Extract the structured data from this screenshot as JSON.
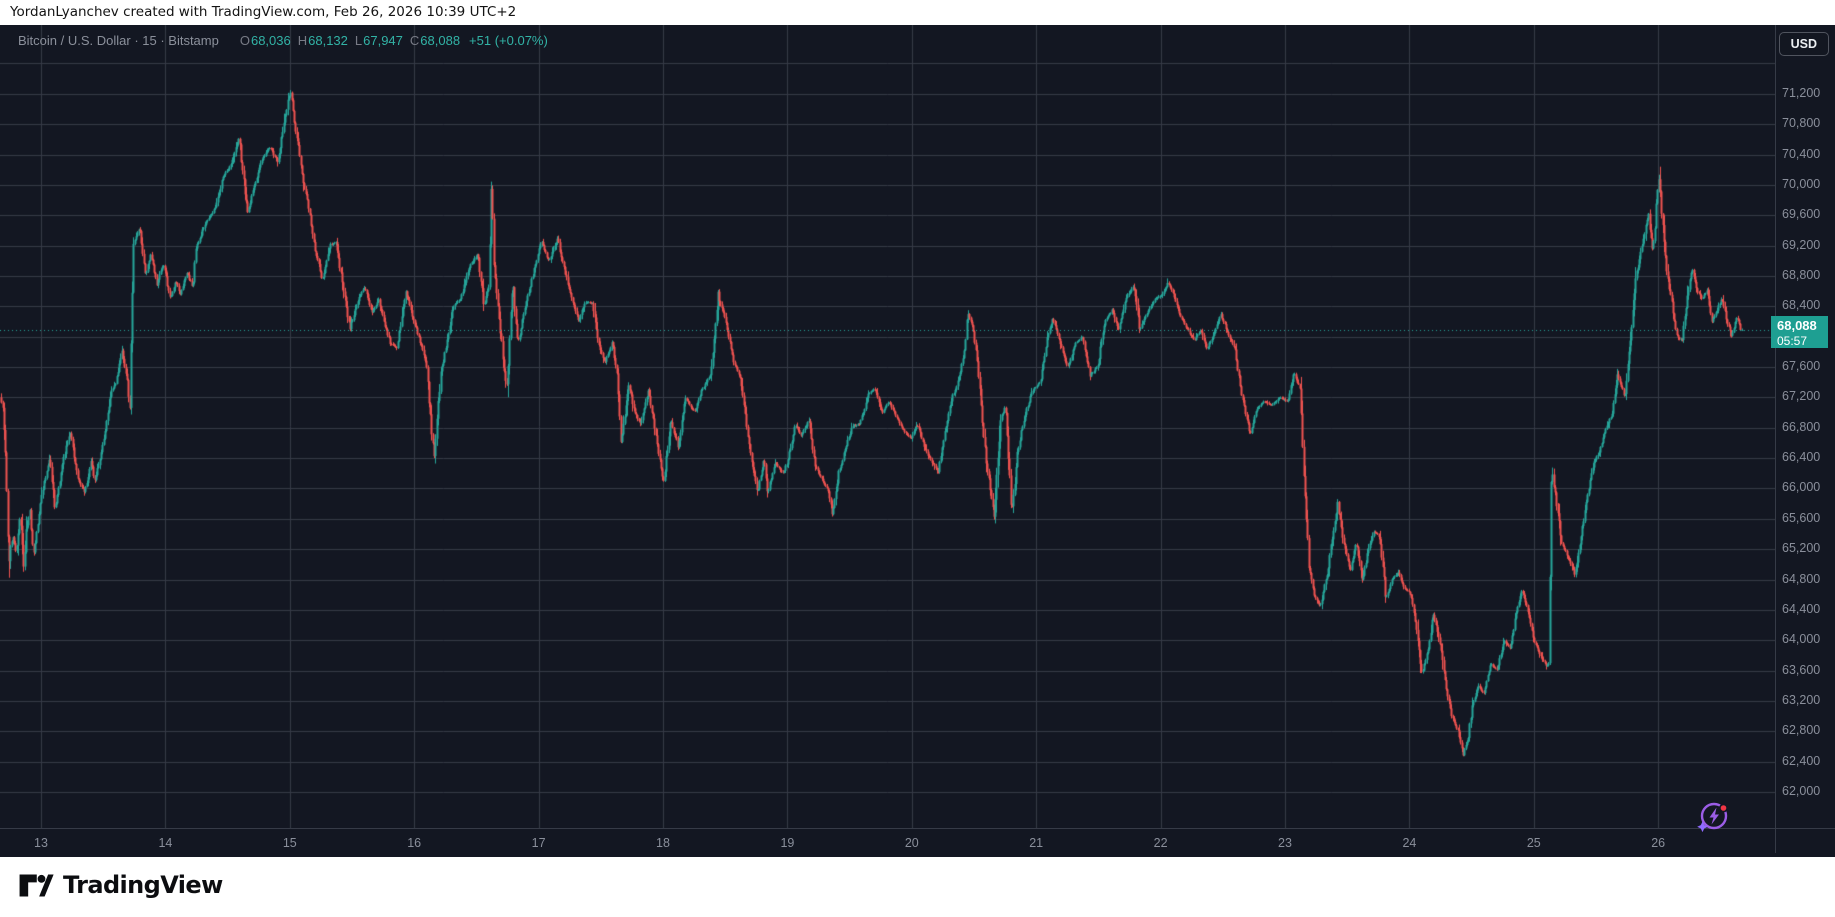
{
  "attribution": {
    "text": "YordanLyanchev created with TradingView.com, Feb 26, 2026 10:39 UTC+2"
  },
  "header": {
    "title": "Bitcoin / U.S. Dollar · 15 · Bitstamp",
    "ohlc": {
      "o_label": "O",
      "o_value": "68,036",
      "h_label": "H",
      "h_value": "68,132",
      "l_label": "L",
      "l_value": "67,947",
      "c_label": "C",
      "c_value": "68,088",
      "change": "+51 (+0.07%)"
    }
  },
  "price_scale": {
    "currency": "USD",
    "last_price": "68,088",
    "countdown": "05:57",
    "tick_labels": [
      "71,200",
      "70,800",
      "70,400",
      "70,000",
      "69,600",
      "69,200",
      "68,800",
      "68,400",
      "67,600",
      "67,200",
      "66,800",
      "66,400",
      "66,000",
      "65,600",
      "65,200",
      "64,800",
      "64,400",
      "64,000",
      "63,600",
      "63,200",
      "62,800",
      "62,400",
      "62,000"
    ]
  },
  "time_scale": {
    "day_labels": [
      "13",
      "14",
      "15",
      "16",
      "17",
      "18",
      "19",
      "20",
      "21",
      "22",
      "23",
      "24",
      "25",
      "26"
    ]
  },
  "footer": {
    "logo_text": "TradingView"
  },
  "colors": {
    "up": "#26a69a",
    "down": "#ef5350",
    "background": "#131722",
    "grid": "#363b47",
    "axis_text": "#8a8f9b",
    "legend_text": "#8b909b",
    "legend_value": "#32b3a6",
    "price_tag_bg": "#1e9f92",
    "price_tag_text": "#ffffff",
    "dotted_line": "#26a69a",
    "icon_purple": "#9b5de5",
    "icon_red": "#f23645"
  },
  "chart_data": {
    "type": "candlestick",
    "title": "Bitcoin / U.S. Dollar",
    "exchange": "Bitstamp",
    "interval_minutes": 15,
    "current_bar": {
      "open": 68036,
      "high": 68132,
      "low": 67947,
      "close": 68088,
      "change": 51,
      "change_pct": 0.07
    },
    "last_price": 68088,
    "x_axis": {
      "label": "day of February 2026",
      "days": [
        13,
        14,
        15,
        16,
        17,
        18,
        19,
        20,
        21,
        22,
        23,
        24,
        25,
        26
      ]
    },
    "y_axis": {
      "min_gridline": 62000,
      "max_gridline": 71600,
      "step": 400,
      "visible_low": 62500,
      "visible_high": 71250
    },
    "price_path_anchors": [
      [
        12.67,
        67200
      ],
      [
        12.69,
        67100
      ],
      [
        12.71,
        66500
      ],
      [
        12.74,
        65050
      ],
      [
        12.77,
        65400
      ],
      [
        12.8,
        65150
      ],
      [
        12.83,
        65650
      ],
      [
        12.86,
        64950
      ],
      [
        12.88,
        65450
      ],
      [
        12.91,
        65700
      ],
      [
        12.94,
        65100
      ],
      [
        12.95,
        65250
      ],
      [
        13.0,
        65900
      ],
      [
        13.07,
        66400
      ],
      [
        13.11,
        65750
      ],
      [
        13.18,
        66400
      ],
      [
        13.23,
        66750
      ],
      [
        13.3,
        66100
      ],
      [
        13.35,
        65950
      ],
      [
        13.4,
        66350
      ],
      [
        13.43,
        66100
      ],
      [
        13.48,
        66450
      ],
      [
        13.56,
        67250
      ],
      [
        13.6,
        67400
      ],
      [
        13.65,
        67800
      ],
      [
        13.69,
        67450
      ],
      [
        13.71,
        66950
      ],
      [
        13.74,
        69200
      ],
      [
        13.79,
        69450
      ],
      [
        13.84,
        68800
      ],
      [
        13.88,
        69100
      ],
      [
        13.93,
        68700
      ],
      [
        13.98,
        68950
      ],
      [
        14.04,
        68500
      ],
      [
        14.08,
        68750
      ],
      [
        14.12,
        68550
      ],
      [
        14.17,
        68850
      ],
      [
        14.22,
        68650
      ],
      [
        14.24,
        69150
      ],
      [
        14.32,
        69500
      ],
      [
        14.4,
        69700
      ],
      [
        14.46,
        70100
      ],
      [
        14.52,
        70250
      ],
      [
        14.59,
        70620
      ],
      [
        14.63,
        70000
      ],
      [
        14.66,
        69620
      ],
      [
        14.72,
        70050
      ],
      [
        14.78,
        70350
      ],
      [
        14.84,
        70500
      ],
      [
        14.9,
        70300
      ],
      [
        14.95,
        70800
      ],
      [
        15.0,
        71250
      ],
      [
        15.03,
        70900
      ],
      [
        15.07,
        70450
      ],
      [
        15.11,
        70000
      ],
      [
        15.15,
        69700
      ],
      [
        15.2,
        69150
      ],
      [
        15.26,
        68750
      ],
      [
        15.32,
        69200
      ],
      [
        15.37,
        69250
      ],
      [
        15.43,
        68600
      ],
      [
        15.48,
        68100
      ],
      [
        15.55,
        68500
      ],
      [
        15.6,
        68650
      ],
      [
        15.66,
        68300
      ],
      [
        15.71,
        68500
      ],
      [
        15.77,
        68100
      ],
      [
        15.81,
        67900
      ],
      [
        15.86,
        67850
      ],
      [
        15.93,
        68600
      ],
      [
        15.98,
        68300
      ],
      [
        16.05,
        67900
      ],
      [
        16.1,
        67600
      ],
      [
        16.13,
        66900
      ],
      [
        16.16,
        66460
      ],
      [
        16.21,
        67500
      ],
      [
        16.26,
        67900
      ],
      [
        16.31,
        68400
      ],
      [
        16.37,
        68500
      ],
      [
        16.45,
        68950
      ],
      [
        16.51,
        69090
      ],
      [
        16.56,
        68400
      ],
      [
        16.6,
        68700
      ],
      [
        16.62,
        70150
      ],
      [
        16.64,
        68900
      ],
      [
        16.68,
        68250
      ],
      [
        16.74,
        67260
      ],
      [
        16.79,
        68750
      ],
      [
        16.83,
        67900
      ],
      [
        16.89,
        68400
      ],
      [
        16.95,
        68800
      ],
      [
        17.02,
        69260
      ],
      [
        17.08,
        69000
      ],
      [
        17.15,
        69300
      ],
      [
        17.2,
        68900
      ],
      [
        17.25,
        68600
      ],
      [
        17.32,
        68200
      ],
      [
        17.37,
        68450
      ],
      [
        17.43,
        68450
      ],
      [
        17.48,
        67900
      ],
      [
        17.53,
        67650
      ],
      [
        17.59,
        67950
      ],
      [
        17.63,
        67500
      ],
      [
        17.66,
        66550
      ],
      [
        17.72,
        67400
      ],
      [
        17.77,
        67000
      ],
      [
        17.82,
        66850
      ],
      [
        17.88,
        67300
      ],
      [
        17.94,
        66700
      ],
      [
        18.0,
        66050
      ],
      [
        18.06,
        66900
      ],
      [
        18.12,
        66550
      ],
      [
        18.18,
        67200
      ],
      [
        18.25,
        67000
      ],
      [
        18.31,
        67300
      ],
      [
        18.38,
        67500
      ],
      [
        18.44,
        68550
      ],
      [
        18.5,
        68200
      ],
      [
        18.56,
        67700
      ],
      [
        18.62,
        67450
      ],
      [
        18.68,
        66700
      ],
      [
        18.72,
        66280
      ],
      [
        18.76,
        65950
      ],
      [
        18.81,
        66400
      ],
      [
        18.84,
        65950
      ],
      [
        18.9,
        66350
      ],
      [
        18.96,
        66200
      ],
      [
        19.0,
        66350
      ],
      [
        19.06,
        66850
      ],
      [
        19.11,
        66700
      ],
      [
        19.17,
        66900
      ],
      [
        19.22,
        66300
      ],
      [
        19.28,
        66100
      ],
      [
        19.32,
        66000
      ],
      [
        19.36,
        65670
      ],
      [
        19.41,
        66200
      ],
      [
        19.46,
        66500
      ],
      [
        19.52,
        66820
      ],
      [
        19.58,
        66850
      ],
      [
        19.65,
        67250
      ],
      [
        19.7,
        67310
      ],
      [
        19.76,
        66980
      ],
      [
        19.81,
        67150
      ],
      [
        19.86,
        67000
      ],
      [
        19.92,
        66800
      ],
      [
        19.99,
        66650
      ],
      [
        20.04,
        66850
      ],
      [
        20.11,
        66500
      ],
      [
        20.16,
        66350
      ],
      [
        20.21,
        66200
      ],
      [
        20.27,
        66800
      ],
      [
        20.32,
        67200
      ],
      [
        20.36,
        67350
      ],
      [
        20.41,
        67700
      ],
      [
        20.45,
        68310
      ],
      [
        20.49,
        68100
      ],
      [
        20.53,
        67600
      ],
      [
        20.57,
        66750
      ],
      [
        20.61,
        66200
      ],
      [
        20.66,
        65630
      ],
      [
        20.71,
        66900
      ],
      [
        20.75,
        67100
      ],
      [
        20.8,
        65670
      ],
      [
        20.85,
        66500
      ],
      [
        20.91,
        67000
      ],
      [
        20.97,
        67300
      ],
      [
        21.03,
        67400
      ],
      [
        21.09,
        68000
      ],
      [
        21.13,
        68240
      ],
      [
        21.19,
        67900
      ],
      [
        21.25,
        67600
      ],
      [
        21.31,
        67900
      ],
      [
        21.37,
        68000
      ],
      [
        21.43,
        67500
      ],
      [
        21.49,
        67600
      ],
      [
        21.55,
        68200
      ],
      [
        21.61,
        68350
      ],
      [
        21.66,
        68100
      ],
      [
        21.72,
        68500
      ],
      [
        21.78,
        68670
      ],
      [
        21.83,
        68100
      ],
      [
        21.89,
        68300
      ],
      [
        21.95,
        68500
      ],
      [
        22.01,
        68550
      ],
      [
        22.06,
        68720
      ],
      [
        22.11,
        68500
      ],
      [
        22.15,
        68300
      ],
      [
        22.21,
        68100
      ],
      [
        22.27,
        67950
      ],
      [
        22.32,
        68100
      ],
      [
        22.37,
        67850
      ],
      [
        22.42,
        68000
      ],
      [
        22.48,
        68300
      ],
      [
        22.54,
        68050
      ],
      [
        22.6,
        67800
      ],
      [
        22.65,
        67200
      ],
      [
        22.72,
        66720
      ],
      [
        22.77,
        67050
      ],
      [
        22.83,
        67150
      ],
      [
        22.89,
        67100
      ],
      [
        22.96,
        67200
      ],
      [
        23.02,
        67150
      ],
      [
        23.07,
        67530
      ],
      [
        23.12,
        67300
      ],
      [
        23.15,
        66200
      ],
      [
        23.19,
        65000
      ],
      [
        23.23,
        64600
      ],
      [
        23.28,
        64450
      ],
      [
        23.34,
        64900
      ],
      [
        23.39,
        65500
      ],
      [
        23.42,
        65800
      ],
      [
        23.47,
        65300
      ],
      [
        23.52,
        64900
      ],
      [
        23.57,
        65300
      ],
      [
        23.62,
        64800
      ],
      [
        23.67,
        65200
      ],
      [
        23.71,
        65450
      ],
      [
        23.76,
        65350
      ],
      [
        23.81,
        64550
      ],
      [
        23.86,
        64800
      ],
      [
        23.91,
        64900
      ],
      [
        23.95,
        64700
      ],
      [
        24.01,
        64600
      ],
      [
        24.05,
        64200
      ],
      [
        24.1,
        63550
      ],
      [
        24.15,
        63900
      ],
      [
        24.19,
        64370
      ],
      [
        24.24,
        64000
      ],
      [
        24.29,
        63400
      ],
      [
        24.34,
        63000
      ],
      [
        24.39,
        62800
      ],
      [
        24.43,
        62500
      ],
      [
        24.47,
        62700
      ],
      [
        24.5,
        63100
      ],
      [
        24.55,
        63400
      ],
      [
        24.6,
        63300
      ],
      [
        24.65,
        63700
      ],
      [
        24.7,
        63600
      ],
      [
        24.76,
        64000
      ],
      [
        24.81,
        63900
      ],
      [
        24.85,
        64300
      ],
      [
        24.9,
        64650
      ],
      [
        24.95,
        64400
      ],
      [
        25.0,
        64000
      ],
      [
        25.05,
        63800
      ],
      [
        25.1,
        63650
      ],
      [
        25.12,
        63700
      ],
      [
        25.14,
        66300
      ],
      [
        25.18,
        65800
      ],
      [
        25.22,
        65300
      ],
      [
        25.27,
        65100
      ],
      [
        25.33,
        64870
      ],
      [
        25.38,
        65400
      ],
      [
        25.43,
        65900
      ],
      [
        25.47,
        66300
      ],
      [
        25.53,
        66500
      ],
      [
        25.58,
        66800
      ],
      [
        25.63,
        67000
      ],
      [
        25.67,
        67500
      ],
      [
        25.73,
        67200
      ],
      [
        25.77,
        67900
      ],
      [
        25.82,
        68800
      ],
      [
        25.87,
        69200
      ],
      [
        25.92,
        69640
      ],
      [
        25.95,
        69100
      ],
      [
        25.97,
        69400
      ],
      [
        26.0,
        70140
      ],
      [
        26.04,
        69300
      ],
      [
        26.07,
        68800
      ],
      [
        26.11,
        68400
      ],
      [
        26.15,
        68000
      ],
      [
        26.19,
        67950
      ],
      [
        26.23,
        68500
      ],
      [
        26.27,
        68900
      ],
      [
        26.31,
        68600
      ],
      [
        26.35,
        68500
      ],
      [
        26.39,
        68600
      ],
      [
        26.43,
        68200
      ],
      [
        26.47,
        68350
      ],
      [
        26.51,
        68500
      ],
      [
        26.55,
        68200
      ],
      [
        26.59,
        68000
      ],
      [
        26.63,
        68250
      ],
      [
        26.67,
        68088
      ]
    ]
  }
}
